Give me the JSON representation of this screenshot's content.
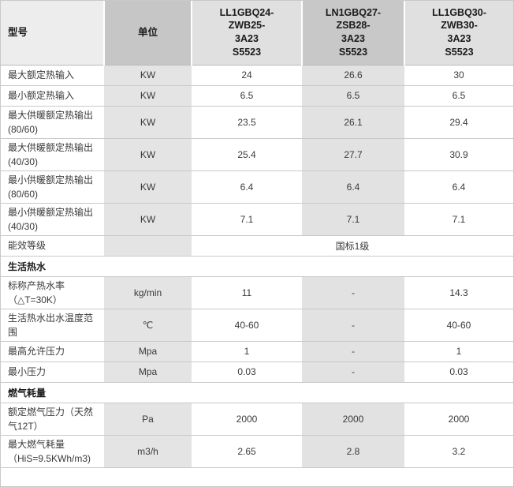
{
  "colors": {
    "page_border": "#c9c9c9",
    "header_model_bg": "#ededed",
    "header_dark_gray": "#c6c6c6",
    "header_light_gray": "#e0e0e0",
    "body_shaded_column": "#e4e4e4",
    "row_line": "#c9c9c9",
    "text": "#3a3a3a"
  },
  "table": {
    "header": {
      "model_label": "型号",
      "unit_label": "单位",
      "models": [
        "LL1GBQ24-\nZWB25-\n3A23\nS5523",
        "LN1GBQ27-\nZSB28-\n3A23\nS5523",
        "LL1GBQ30-\nZWB30-\n3A23\nS5523"
      ]
    },
    "rows": [
      {
        "type": "data",
        "tall": false,
        "label": "最大额定热输入",
        "unit": "KW",
        "values": [
          "24",
          "26.6",
          "30"
        ]
      },
      {
        "type": "data",
        "tall": false,
        "label": "最小额定热输入",
        "unit": "KW",
        "values": [
          "6.5",
          "6.5",
          "6.5"
        ]
      },
      {
        "type": "data",
        "tall": true,
        "label": "最大供暖额定热输出\n(80/60)",
        "unit": "KW",
        "values": [
          "23.5",
          "26.1",
          "29.4"
        ]
      },
      {
        "type": "data",
        "tall": true,
        "label": "最大供暖额定热输出\n(40/30)",
        "unit": "KW",
        "values": [
          "25.4",
          "27.7",
          "30.9"
        ]
      },
      {
        "type": "data",
        "tall": true,
        "label": "最小供暖额定热输出\n(80/60)",
        "unit": "KW",
        "values": [
          "6.4",
          "6.4",
          "6.4"
        ]
      },
      {
        "type": "data",
        "tall": true,
        "label": "最小供暖额定热输出\n(40/30)",
        "unit": "KW",
        "values": [
          "7.1",
          "7.1",
          "7.1"
        ]
      },
      {
        "type": "merged",
        "tall": false,
        "label": "能效等级",
        "unit": "",
        "merged_value": "国标1级"
      },
      {
        "type": "section",
        "tall": false,
        "label": "生活热水"
      },
      {
        "type": "data",
        "tall": true,
        "label": "标称产热水率\n（△T=30K）",
        "unit": "kg/min",
        "values": [
          "11",
          "-",
          "14.3"
        ]
      },
      {
        "type": "data",
        "tall": true,
        "label": "生活热水出水温度范\n围",
        "unit": "℃",
        "values": [
          "40-60",
          "-",
          "40-60"
        ]
      },
      {
        "type": "data",
        "tall": false,
        "label": "最高允许压力",
        "unit": "Mpa",
        "values": [
          "1",
          "-",
          "1"
        ]
      },
      {
        "type": "data",
        "tall": false,
        "label": "最小压力",
        "unit": "Mpa",
        "values": [
          "0.03",
          "-",
          "0.03"
        ]
      },
      {
        "type": "section",
        "tall": false,
        "label": "燃气耗量"
      },
      {
        "type": "data",
        "tall": true,
        "label": "额定燃气压力（天然\n气12T）",
        "unit": "Pa",
        "values": [
          "2000",
          "2000",
          "2000"
        ]
      },
      {
        "type": "data",
        "tall": true,
        "label": "最大燃气耗量\n（HiS=9.5KWh/m3)",
        "unit": "m3/h",
        "values": [
          "2.65",
          "2.8",
          "3.2"
        ]
      }
    ]
  }
}
